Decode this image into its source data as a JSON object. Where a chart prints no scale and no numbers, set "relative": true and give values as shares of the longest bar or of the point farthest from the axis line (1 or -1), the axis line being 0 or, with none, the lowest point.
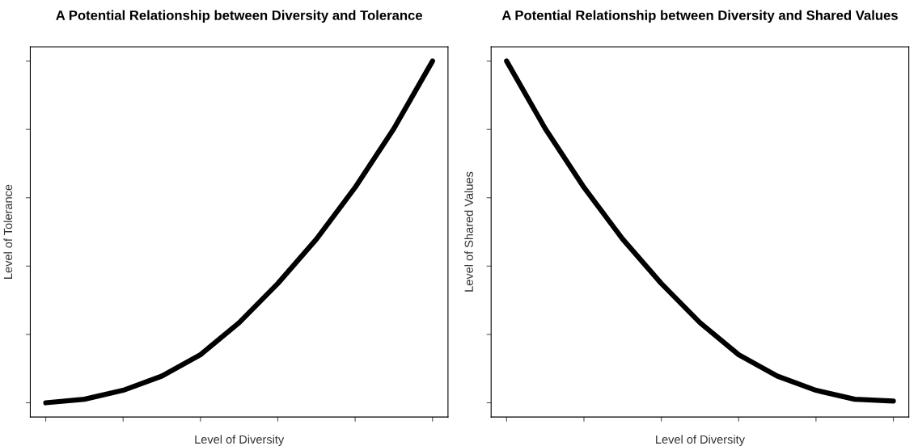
{
  "chart_data": [
    {
      "type": "line",
      "title": "A Potential Relationship between Diversity and Tolerance",
      "xlabel": "Level of Diversity",
      "ylabel": "Level of Tolerance",
      "relative": true,
      "tick_labels": false,
      "categories": [
        null,
        null,
        null,
        null,
        null,
        null,
        null,
        null,
        null,
        null,
        null
      ],
      "series": [
        {
          "color": "#000000",
          "values": [
            0.04,
            0.05,
            0.075,
            0.115,
            0.175,
            0.265,
            0.375,
            0.5,
            0.645,
            0.81,
            1
          ]
        }
      ]
    },
    {
      "type": "line",
      "title": "A Potential Relationship between Diversity and Shared Values",
      "xlabel": "Level of Diversity",
      "ylabel": "Level of Shared Values",
      "relative": true,
      "tick_labels": false,
      "categories": [
        null,
        null,
        null,
        null,
        null,
        null,
        null,
        null,
        null,
        null,
        null
      ],
      "series": [
        {
          "color": "#000000",
          "values": [
            1,
            0.81,
            0.645,
            0.5,
            0.375,
            0.265,
            0.175,
            0.115,
            0.075,
            0.05,
            0.045
          ]
        }
      ]
    }
  ]
}
